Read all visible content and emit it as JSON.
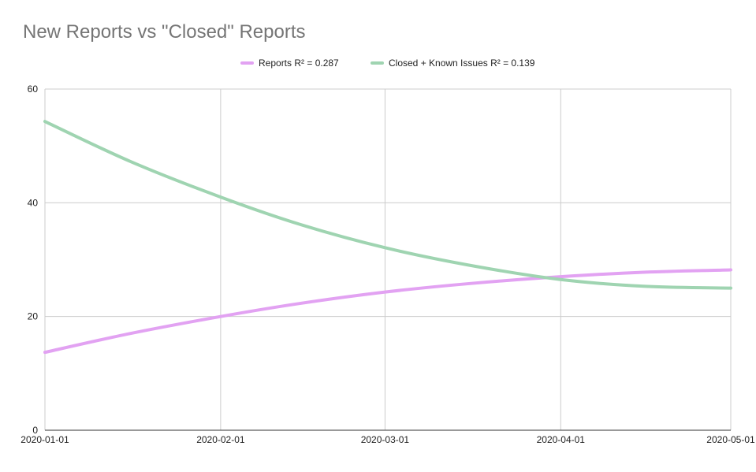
{
  "chart_data": {
    "type": "line",
    "title": "New Reports vs \"Closed\" Reports",
    "xlabel": "",
    "ylabel": "",
    "x_ticks": [
      "2020-01-01",
      "2020-02-01",
      "2020-03-01",
      "2020-04-01",
      "2020-05-01"
    ],
    "xlim": [
      "2020-01-01",
      "2020-05-01"
    ],
    "ylim": [
      0,
      60
    ],
    "y_ticks": [
      0,
      20,
      40,
      60
    ],
    "grid": true,
    "legend_position": "top",
    "series": [
      {
        "name": "Reports R² = 0.287",
        "color": "#e2a2f2",
        "x": [
          "2020-01-01",
          "2020-01-16",
          "2020-02-01",
          "2020-02-15",
          "2020-03-01",
          "2020-03-16",
          "2020-04-01",
          "2020-04-16",
          "2020-05-01"
        ],
        "y": [
          13.7,
          17.0,
          20.0,
          22.3,
          24.3,
          25.8,
          27.0,
          27.8,
          28.2
        ]
      },
      {
        "name": "Closed + Known Issues R² = 0.139",
        "color": "#9fd4b1",
        "x": [
          "2020-01-01",
          "2020-01-16",
          "2020-02-01",
          "2020-02-15",
          "2020-03-01",
          "2020-03-16",
          "2020-04-01",
          "2020-04-16",
          "2020-05-01"
        ],
        "y": [
          54.3,
          47.3,
          41.0,
          36.2,
          32.1,
          29.0,
          26.5,
          25.3,
          25.0
        ]
      }
    ]
  }
}
